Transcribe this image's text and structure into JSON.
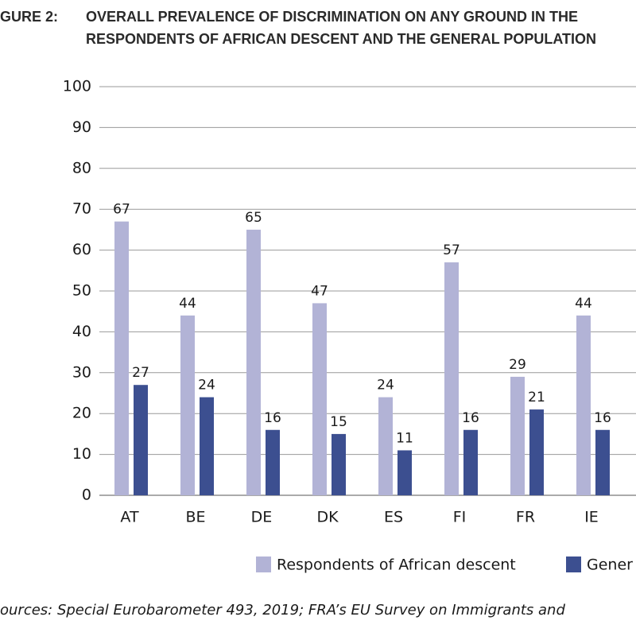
{
  "chart_data": {
    "type": "bar",
    "figure_label": "GURE 2:",
    "title_lines": [
      "OVERALL PREVALENCE OF DISCRIMINATION ON ANY GROUND IN THE",
      "RESPONDENTS OF AFRICAN DESCENT AND THE GENERAL POPULATION"
    ],
    "categories": [
      "AT",
      "BE",
      "DE",
      "DK",
      "ES",
      "FI",
      "FR",
      "IE"
    ],
    "series": [
      {
        "name": "Respondents of African descent",
        "color": "#b2b3d6",
        "values": [
          67,
          44,
          65,
          47,
          24,
          57,
          29,
          44
        ]
      },
      {
        "name": "Gener",
        "color": "#3c4f90",
        "values": [
          27,
          24,
          16,
          15,
          11,
          16,
          21,
          16
        ]
      }
    ],
    "ylim": [
      0,
      100
    ],
    "yticks": [
      0,
      10,
      20,
      30,
      40,
      50,
      60,
      70,
      80,
      90,
      100
    ],
    "grid": true,
    "source": "ources: Special Eurobarometer 493, 2019; FRA’s EU Survey on Immigrants and"
  }
}
